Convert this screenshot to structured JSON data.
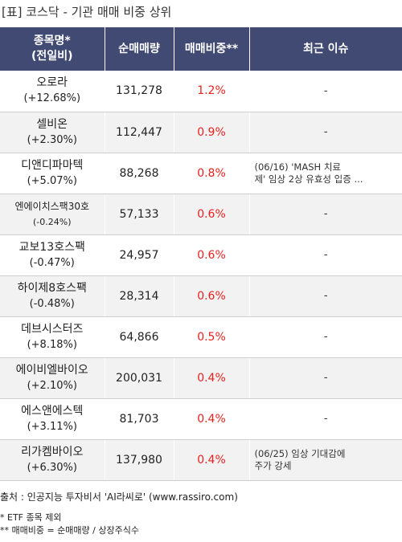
{
  "title": "[표] 코스닥 - 기관 매매 비중 상위",
  "header": {
    "name_line1": "종목명*",
    "name_line2": "(전일비)",
    "qty": "순매매량",
    "ratio": "매매비중**",
    "issue": "최근 이슈"
  },
  "rows": [
    {
      "name": "오로라",
      "change": "(+12.68%)",
      "qty": "131,278",
      "ratio": "1.2%",
      "issue_line1": "-",
      "issue_line2": ""
    },
    {
      "name": "셀비온",
      "change": "(+2.30%)",
      "qty": "112,447",
      "ratio": "0.9%",
      "issue_line1": "-",
      "issue_line2": ""
    },
    {
      "name": "디앤디파마텍",
      "change": "(+5.07%)",
      "qty": "88,268",
      "ratio": "0.8%",
      "issue_line1": "(06/16) 'MASH 치료",
      "issue_line2": "제' 임상 2상 유효성 입증 ..."
    },
    {
      "name": "엔에이치스팩30호",
      "change": "(-0.24%)",
      "qty": "57,133",
      "ratio": "0.6%",
      "issue_line1": "-",
      "issue_line2": ""
    },
    {
      "name": "교보13호스팩",
      "change": "(-0.47%)",
      "qty": "24,957",
      "ratio": "0.6%",
      "issue_line1": "-",
      "issue_line2": ""
    },
    {
      "name": "하이제8호스팩",
      "change": "(-0.48%)",
      "qty": "28,314",
      "ratio": "0.6%",
      "issue_line1": "-",
      "issue_line2": ""
    },
    {
      "name": "데브시스터즈",
      "change": "(+8.18%)",
      "qty": "64,866",
      "ratio": "0.5%",
      "issue_line1": "-",
      "issue_line2": ""
    },
    {
      "name": "에이비엘바이오",
      "change": "(+2.10%)",
      "qty": "200,031",
      "ratio": "0.4%",
      "issue_line1": "-",
      "issue_line2": ""
    },
    {
      "name": "에스앤에스텍",
      "change": "(+3.11%)",
      "qty": "81,703",
      "ratio": "0.4%",
      "issue_line1": "-",
      "issue_line2": ""
    },
    {
      "name": "리가켐바이오",
      "change": "(+6.30%)",
      "qty": "137,980",
      "ratio": "0.4%",
      "issue_line1": "(06/25) 임상 기대감에",
      "issue_line2": "주가 강세"
    }
  ],
  "source": "출처 : 인공지능 투자비서 'AI라씨로' (www.rassiro.com)",
  "note1": "* ETF 종목 제외",
  "note2": "** 매매비중 = 순매매량 / 상장주식수"
}
